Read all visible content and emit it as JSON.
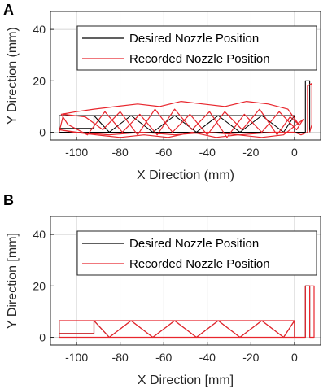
{
  "chart_data": [
    {
      "type": "line",
      "panel": "A",
      "xlabel": "X Direction (mm)",
      "ylabel": "Y Direction (mm)",
      "xlim": [
        -112,
        12
      ],
      "ylim": [
        -3,
        47
      ],
      "xticks": [
        -100,
        -80,
        -60,
        -40,
        -20,
        0
      ],
      "yticks": [
        0,
        20,
        40
      ],
      "grid": true,
      "legend_placement": "top-right",
      "series": [
        {
          "name": "Desired Nozzle Position",
          "color": "#000000",
          "x": [
            -108,
            -108,
            -92,
            -85,
            -75,
            -65,
            -55,
            -45,
            -35,
            -25,
            -15,
            -5,
            0,
            0,
            -5,
            -15,
            -25,
            -35,
            -45,
            -55,
            -65,
            -75,
            -85,
            -92,
            -108,
            -108,
            -92,
            -92,
            -85,
            -80,
            -75,
            -70,
            -65,
            -60,
            -55,
            -50,
            -45,
            -40,
            -35,
            -30,
            -25,
            -20,
            -15,
            -10,
            -5,
            0,
            0,
            5,
            5,
            7,
            7
          ],
          "y": [
            0,
            6.5,
            6.5,
            0,
            6.5,
            0,
            6.5,
            0,
            6.5,
            0,
            6.5,
            0,
            6.5,
            0,
            0,
            0,
            0,
            0,
            0,
            0,
            0,
            0,
            0,
            0,
            0,
            1.5,
            1.5,
            6.5,
            6.5,
            6.5,
            6.5,
            6.5,
            6.5,
            6.5,
            6.5,
            6.5,
            6.5,
            6.5,
            6.5,
            6.5,
            6.5,
            6.5,
            6.5,
            6.5,
            6.5,
            6.5,
            0,
            0,
            20,
            20,
            0
          ]
        },
        {
          "name": "Recorded Nozzle Position",
          "color": "#e8262d",
          "x": [
            -108,
            -106,
            -96,
            -88,
            -80,
            -72,
            -64,
            -56,
            -48,
            -40,
            -32,
            -24,
            -16,
            -8,
            -2,
            2,
            -3,
            -12,
            -22,
            -32,
            -42,
            -52,
            -62,
            -72,
            -82,
            -92,
            -100,
            -107,
            -104,
            -95,
            -87,
            -79,
            -71,
            -63,
            -55,
            -47,
            -39,
            -31,
            -23,
            -15,
            -7,
            1,
            4,
            -5,
            -15,
            -26,
            -36,
            -47,
            -58,
            -69,
            -80,
            -91,
            -101,
            -108,
            -100,
            -85,
            -70,
            -55,
            -40,
            -25,
            -10,
            0,
            3,
            6,
            6,
            8,
            8,
            7
          ],
          "y": [
            0,
            7,
            6,
            1,
            8,
            -1,
            9,
            0,
            7,
            -1,
            8,
            1,
            9,
            -1,
            6,
            3,
            9,
            11,
            12,
            10,
            11,
            12,
            10,
            11,
            10,
            9,
            8,
            7,
            3,
            -1,
            8,
            0,
            7,
            -1,
            9,
            1,
            8,
            -2,
            7,
            0,
            8,
            1,
            5,
            -1,
            -2,
            -1,
            -2,
            0,
            -2,
            -1,
            -2,
            -1,
            0,
            1,
            0,
            -1,
            0,
            -1,
            0,
            -1,
            0,
            0,
            -1,
            0,
            18,
            19,
            3,
            0
          ]
        }
      ]
    },
    {
      "type": "line",
      "panel": "B",
      "xlabel": "X Direction [mm]",
      "ylabel": "Y Direction [mm]",
      "xlim": [
        -112,
        12
      ],
      "ylim": [
        -3,
        47
      ],
      "xticks": [
        -100,
        -80,
        -60,
        -40,
        -20,
        0
      ],
      "yticks": [
        0,
        20,
        40
      ],
      "grid": true,
      "legend_placement": "top-right",
      "series": [
        {
          "name": "Desired Nozzle Position",
          "color": "#000000",
          "x": [
            -108,
            -108,
            -92,
            -85,
            -75,
            -65,
            -55,
            -45,
            -35,
            -25,
            -15,
            -5,
            0,
            0,
            -5,
            -15,
            -25,
            -35,
            -45,
            -55,
            -65,
            -75,
            -85,
            -92,
            -108,
            -108,
            -92,
            -92,
            0,
            0,
            5,
            5,
            7,
            7
          ],
          "y": [
            0,
            6.5,
            6.5,
            0,
            6.5,
            0,
            6.5,
            0,
            6.5,
            0,
            6.5,
            0,
            6.5,
            0,
            0,
            0,
            0,
            0,
            0,
            0,
            0,
            0,
            0,
            0,
            0,
            1.5,
            1.5,
            6.5,
            6.5,
            0,
            0,
            20,
            20,
            0
          ]
        },
        {
          "name": "Recorded Nozzle Position",
          "color": "#e8262d",
          "x": [
            -108,
            -108,
            -92,
            -85,
            -75,
            -65,
            -55,
            -45,
            -35,
            -25,
            -15,
            -5,
            0,
            0,
            -5,
            -15,
            -25,
            -35,
            -45,
            -55,
            -65,
            -75,
            -85,
            -92,
            -108,
            -108,
            -92,
            -92,
            0,
            0,
            5,
            5,
            7,
            7,
            9,
            9,
            7
          ],
          "y": [
            0,
            6.5,
            6.5,
            0,
            6.5,
            0,
            6.5,
            0,
            6.5,
            0,
            6.5,
            0,
            6.5,
            0,
            0,
            0,
            0,
            0,
            0,
            0,
            0,
            0,
            0,
            0,
            0,
            1.5,
            1.5,
            6.5,
            6.5,
            0,
            0,
            20,
            20,
            0,
            0,
            20,
            20
          ]
        }
      ]
    }
  ]
}
